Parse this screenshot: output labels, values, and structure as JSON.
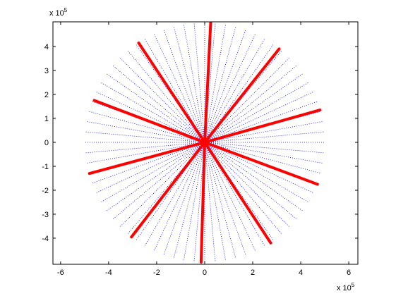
{
  "chart_data": {
    "type": "radial",
    "xlim": [
      -6.32,
      6.38
    ],
    "ylim": [
      -5.09,
      5.03
    ],
    "xticks": [
      -6,
      -4,
      -2,
      0,
      2,
      4,
      6
    ],
    "yticks": [
      -4,
      -3,
      -2,
      -1,
      0,
      1,
      2,
      3,
      4
    ],
    "x_multiplier": {
      "base": "x 10",
      "exponent": "5"
    },
    "y_multiplier": {
      "base": "x 10",
      "exponent": "5"
    },
    "spokes": {
      "color": "#0000ff",
      "x": [
        5,
        4.98,
        4.92,
        4.83,
        4.7,
        4.53,
        4.33,
        4.1,
        3.83,
        3.54,
        3.21,
        2.87,
        2.5,
        2.11,
        1.71,
        1.29,
        0.87,
        0.44,
        0,
        -0.44,
        -0.87,
        -1.29,
        -1.71,
        -2.11,
        -2.5,
        -2.87,
        -3.21,
        -3.54,
        -3.83,
        -4.1,
        -4.33,
        -4.53,
        -4.7,
        -4.83,
        -4.92,
        -4.98,
        -5,
        -4.98,
        -4.92,
        -4.83,
        -4.7,
        -4.53,
        -4.33,
        -4.1,
        -3.83,
        -3.54,
        -3.21,
        -2.87,
        -2.5,
        -2.11,
        -1.71,
        -1.29,
        -0.87,
        -0.44,
        0,
        0.44,
        0.87,
        1.29,
        1.71,
        2.11,
        2.5,
        2.87,
        3.21,
        3.54,
        3.83,
        4.1,
        4.33,
        4.53,
        4.7,
        4.83,
        4.92,
        4.98
      ],
      "y": [
        0,
        0.44,
        0.87,
        1.29,
        1.71,
        2.11,
        2.5,
        2.87,
        3.21,
        3.54,
        3.83,
        4.1,
        4.33,
        4.53,
        4.7,
        4.83,
        4.92,
        4.98,
        5,
        4.98,
        4.92,
        4.83,
        4.7,
        4.53,
        4.33,
        4.1,
        3.83,
        3.54,
        3.21,
        2.87,
        2.5,
        2.11,
        1.71,
        1.29,
        0.87,
        0.44,
        0,
        -0.44,
        -0.87,
        -1.29,
        -1.71,
        -2.11,
        -2.5,
        -2.87,
        -3.21,
        -3.54,
        -3.83,
        -4.1,
        -4.33,
        -4.53,
        -4.7,
        -4.83,
        -4.92,
        -4.98,
        -5,
        -4.98,
        -4.92,
        -4.83,
        -4.7,
        -4.53,
        -4.33,
        -4.1,
        -3.83,
        -3.54,
        -3.21,
        -2.87,
        -2.5,
        -2.11,
        -1.71,
        -1.29,
        -0.87,
        -0.44
      ]
    },
    "red_lines": {
      "color": "#ff0000",
      "x": [
        0.25,
        3.1,
        4.8,
        4.7,
        2.75,
        -0.15,
        -3.05,
        -4.8,
        -4.6,
        -2.75
      ],
      "y": [
        5.0,
        3.9,
        1.35,
        -1.75,
        -4.2,
        -5.0,
        -3.95,
        -1.3,
        1.75,
        4.15
      ]
    }
  }
}
